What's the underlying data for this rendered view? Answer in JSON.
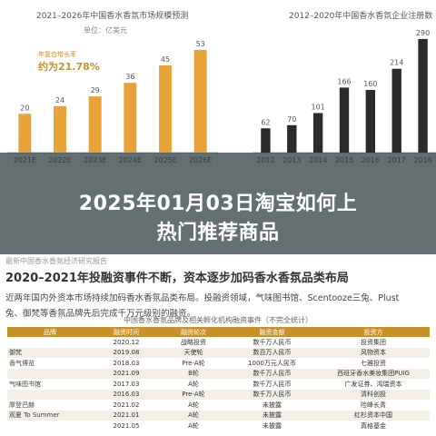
{
  "charts": {
    "left_title": "2021–2026年中国香水香氛市场规模预测",
    "left_unit": "单位：亿美元",
    "left_legend_label": "年复合增长率",
    "left_legend_value": "21.78%",
    "right_title": "2012–2020年中国香水香氛企业注册数"
  },
  "chart_data": [
    {
      "type": "bar",
      "title": "2021–2026年中国香水香氛市场规模预测",
      "ylabel": "单位：亿美元",
      "categories": [
        "2021E",
        "2022E",
        "2023E",
        "2024E",
        "2025E",
        "2026E"
      ],
      "values": [
        20,
        24,
        29,
        36,
        45,
        53
      ],
      "annotation": "年复合增长率 21.78%",
      "color": "#e8a23a",
      "ylim": [
        0,
        60
      ]
    },
    {
      "type": "bar",
      "title": "2012–2020年中国香水香氛企业注册数",
      "categories": [
        "2012",
        "2013",
        "2014",
        "2015",
        "2016",
        "2017",
        "2018"
      ],
      "values": [
        62,
        70,
        101,
        166,
        160,
        214,
        290
      ],
      "color": "#2b2b2b",
      "ylim": [
        0,
        320
      ]
    }
  ],
  "banner": {
    "line1": "2025年01月03日淘宝如何上",
    "line2": "热门推荐商品"
  },
  "section": {
    "source_small": "最新中国香水香氛经济研究报告",
    "heading": "2020–2021年投融资事件不断，资本逐步加码香水香氛品类布局",
    "para1": "近两年国内外资本市场持续加码香水香氛品类布局。投融资领域，气味图书馆、Scentooze三兔、Plust",
    "para2": "兔、御梵等香氛品牌先后完成千万元级别的融资。"
  },
  "table": {
    "title": "中国香水香氛品牌及相关孵化机构融资事件（不完全统计）",
    "headers": [
      "品牌",
      "融资时间",
      "融资轮次",
      "融资金额",
      "投资方"
    ],
    "rows": [
      [
        "",
        "2020.12",
        "战略投资",
        "数千万人民币",
        "投资集团"
      ],
      [
        "御梵",
        "2019.08",
        "天使轮",
        "数百万人民币",
        "风物资本"
      ],
      [
        "香气博览",
        "2018.03",
        "Pre-A轮",
        "1000万元人民币",
        "七雅投资"
      ],
      [
        "",
        "2021.09",
        "B轮",
        "数千万人民币",
        "西班牙香水美妆集团PUIG"
      ],
      [
        "气味图书馆",
        "2017.03",
        "A轮",
        "数千万人民币",
        "广发证券、鸿瑞资本"
      ],
      [
        "",
        "2016.03",
        "Pre-A轮",
        "数千万人民币",
        "清科创投"
      ],
      [
        "摩登巴赫",
        "2021.02",
        "A轮",
        "未披露",
        "险峰长青"
      ],
      [
        "观夏 To Summer",
        "2021.01",
        "A轮",
        "未披露",
        "红杉资本中国"
      ],
      [
        "",
        "2021.05",
        "A轮",
        "未披露",
        "真格基金"
      ]
    ]
  }
}
